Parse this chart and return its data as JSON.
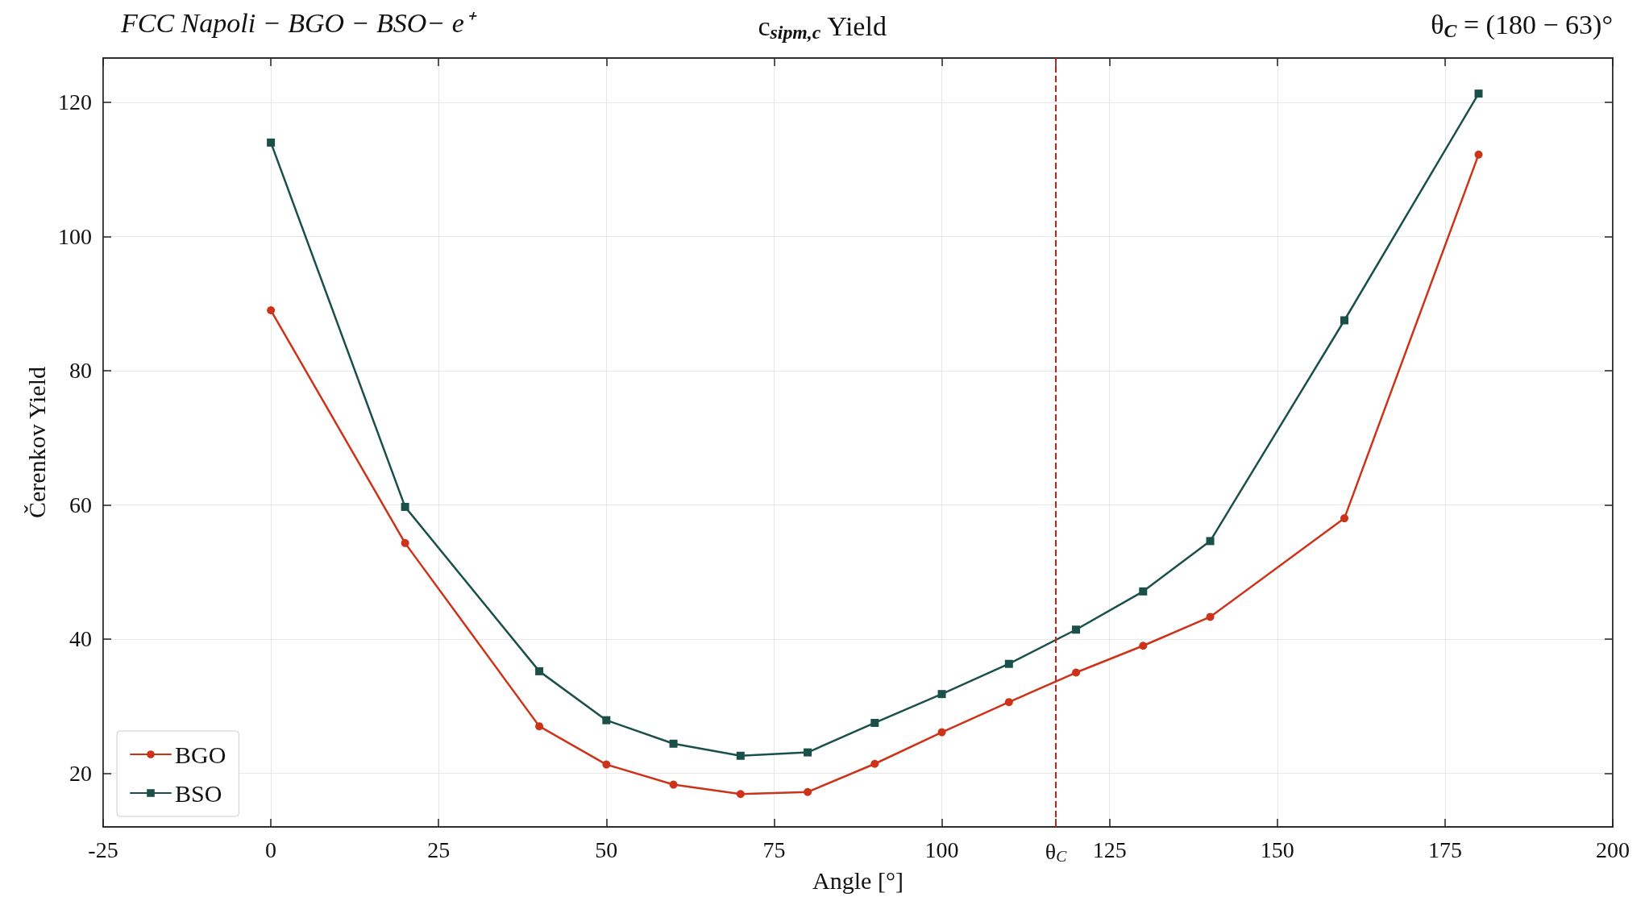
{
  "chart_data": {
    "type": "line",
    "title": "c$_{sipm,c}$ Yield",
    "annotations": [
      "FCC Napoli − BGO − BSO− e⁺",
      "θ$_{C}$ = (180 − 63)°"
    ],
    "xlabel": "Angle [°]",
    "ylabel": "Čerenkov Yield",
    "xlim": [
      -25,
      200
    ],
    "ylim": [
      12,
      126.6
    ],
    "xticks": [
      -25,
      0,
      25,
      50,
      75,
      100,
      {
        "value": 117,
        "label": "θ$_{C}$"
      },
      125,
      150,
      175,
      200
    ],
    "yticks": [
      20,
      40,
      60,
      80,
      100,
      120
    ],
    "grid": true,
    "legend": "bottom left",
    "line_style": "solid",
    "series": [
      {
        "name": "BGO",
        "color": "#cc3318",
        "marker": "circle",
        "x": [
          0,
          20,
          40,
          50,
          60,
          70,
          80,
          90,
          100,
          110,
          120,
          130,
          140,
          160,
          180
        ],
        "values": [
          89.0,
          54.3,
          27.0,
          21.3,
          18.3,
          16.9,
          17.2,
          21.4,
          26.1,
          30.6,
          35.0,
          39.0,
          43.3,
          58.0,
          112.2
        ]
      },
      {
        "name": "BSO",
        "color": "#1b5049",
        "marker": "square",
        "x": [
          0,
          20,
          40,
          50,
          60,
          70,
          80,
          90,
          100,
          110,
          120,
          130,
          140,
          160,
          180
        ],
        "values": [
          114.0,
          59.7,
          35.2,
          27.9,
          24.4,
          22.6,
          23.1,
          27.5,
          31.8,
          36.3,
          41.4,
          47.1,
          54.6,
          87.5,
          121.3
        ]
      }
    ],
    "ref_lines": [
      {
        "axis": "x",
        "value": 117,
        "color": "#c0241c",
        "line_style": "dashed"
      }
    ]
  }
}
